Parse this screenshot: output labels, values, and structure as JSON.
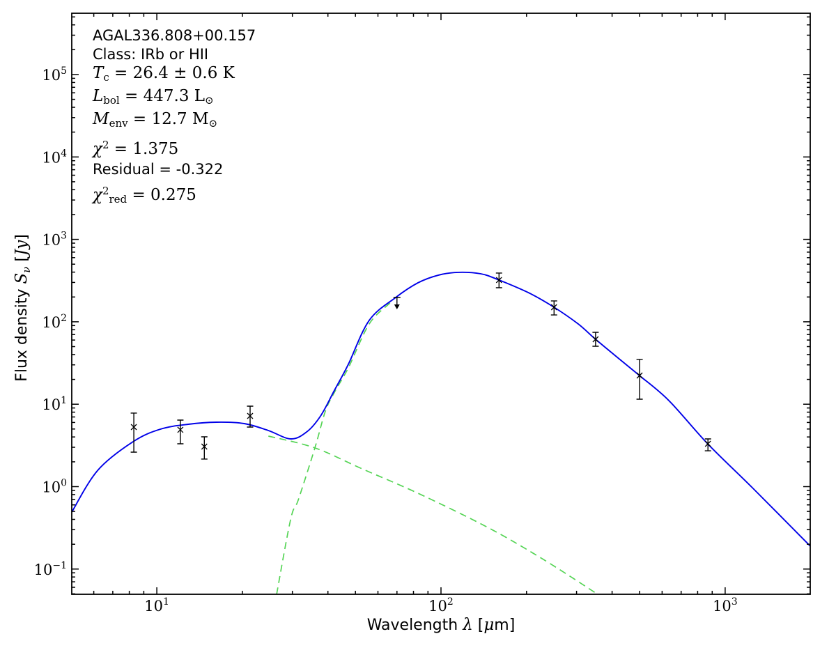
{
  "figure": {
    "background": "#ffffff"
  },
  "annotation": {
    "source_name": "AGAL336.808+00.157",
    "class_line": "Class: IRb or HII",
    "residual_line": "Residual = -0.322",
    "math_lines": {
      "tc": [
        {
          "t": "T",
          "c": "mi"
        },
        {
          "t": "c",
          "c": "sub"
        },
        {
          "t": " = 26.4 ± 0.6 K",
          "c": "mr"
        }
      ],
      "lbol": [
        {
          "t": "L",
          "c": "mi"
        },
        {
          "t": "bol",
          "c": "sub"
        },
        {
          "t": " = 447.3 L",
          "c": "mr"
        },
        {
          "t": "⊙",
          "c": "sub"
        }
      ],
      "menv": [
        {
          "t": "M",
          "c": "mi"
        },
        {
          "t": "env",
          "c": "sub"
        },
        {
          "t": " = 12.7 M",
          "c": "mr"
        },
        {
          "t": "⊙",
          "c": "sub"
        }
      ],
      "chi2": [
        {
          "t": "χ",
          "c": "mi"
        },
        {
          "t": "2",
          "c": "sup"
        },
        {
          "t": " = 1.375",
          "c": "mr"
        }
      ],
      "chi2red": [
        {
          "t": "χ",
          "c": "mi"
        },
        {
          "t": "2",
          "c": "sup"
        },
        {
          "t": "red",
          "c": "sub"
        },
        {
          "t": " = 0.275",
          "c": "mr"
        }
      ]
    }
  },
  "chart_data": {
    "type": "line",
    "title": "",
    "xlabel": "Wavelength λ [μm]",
    "ylabel": "Flux density Sν [Jy]",
    "xlabel_parts": [
      {
        "t": "Wavelength ",
        "c": "sans"
      },
      {
        "t": "λ",
        "c": "it"
      },
      {
        "t": " [",
        "c": "sans"
      },
      {
        "t": "μ",
        "c": "it"
      },
      {
        "t": "m]",
        "c": "sans"
      }
    ],
    "ylabel_parts": [
      {
        "t": "Flux density ",
        "c": "sans"
      },
      {
        "t": "S",
        "c": "it"
      },
      {
        "t": "ν",
        "c": "subit"
      },
      {
        "t": " [",
        "c": "sans"
      },
      {
        "t": "Jy",
        "c": "it"
      },
      {
        "t": "]",
        "c": "sans"
      }
    ],
    "grid": false,
    "legend": false,
    "x_axis": {
      "scale": "log",
      "min": 5.02,
      "max": 1992,
      "unit": "μm",
      "label_exponents": [
        1,
        2,
        3
      ]
    },
    "y_axis": {
      "scale": "log",
      "min": 0.0494,
      "max": 554000,
      "unit": "Jy",
      "label_exponents": [
        -1,
        0,
        1,
        2,
        3,
        4,
        5
      ]
    },
    "series": [
      {
        "name": "cold-greybody-component",
        "color": "#55d455",
        "style": "dashed",
        "points": [
          [
            26.4,
            0.0494
          ],
          [
            29.6,
            0.404
          ],
          [
            31.5,
            0.698
          ],
          [
            36.0,
            2.95
          ],
          [
            39.2,
            8.26
          ],
          [
            42.2,
            14.0
          ],
          [
            47.2,
            27.6
          ],
          [
            55.9,
            94.2
          ],
          [
            66.2,
            169
          ]
        ]
      },
      {
        "name": "hot-component",
        "color": "#55d455",
        "style": "dashed",
        "points": [
          [
            24.7,
            4.1
          ],
          [
            36.0,
            2.95
          ],
          [
            52.8,
            1.64
          ],
          [
            83.0,
            0.83
          ],
          [
            146,
            0.32
          ],
          [
            229,
            0.131
          ],
          [
            356,
            0.0494
          ]
        ]
      },
      {
        "name": "total-model",
        "color": "#0000e8",
        "style": "solid",
        "points": [
          [
            5.02,
            0.49
          ],
          [
            6.2,
            1.58
          ],
          [
            8.25,
            3.51
          ],
          [
            10.3,
            4.98
          ],
          [
            12.9,
            5.71
          ],
          [
            16.2,
            6.05
          ],
          [
            20.3,
            5.82
          ],
          [
            24.7,
            4.79
          ],
          [
            29.6,
            3.79
          ],
          [
            33.7,
            4.61
          ],
          [
            37.7,
            7.2
          ],
          [
            42.2,
            14.8
          ],
          [
            47.2,
            30.5
          ],
          [
            55.9,
            104
          ],
          [
            69.3,
            197
          ],
          [
            83,
            297
          ],
          [
            98,
            368
          ],
          [
            115,
            398
          ],
          [
            138,
            382
          ],
          [
            160,
            321
          ],
          [
            205,
            222
          ],
          [
            250,
            150
          ],
          [
            304,
            94
          ],
          [
            350,
            61.3
          ],
          [
            426,
            34.9
          ],
          [
            499,
            22.3
          ],
          [
            633,
            11.1
          ],
          [
            868,
            3.31
          ],
          [
            1246,
            0.97
          ],
          [
            1992,
            0.19
          ]
        ]
      }
    ],
    "data_points": {
      "color": "#000000",
      "marker": "x",
      "values": [
        {
          "wl": 8.3,
          "flux": 5.28,
          "lo": 2.62,
          "hi": 7.8
        },
        {
          "wl": 12.1,
          "flux": 4.89,
          "lo": 3.31,
          "hi": 6.41
        },
        {
          "wl": 14.7,
          "flux": 3.06,
          "lo": 2.16,
          "hi": 4.02
        },
        {
          "wl": 21.3,
          "flux": 7.21,
          "lo": 5.28,
          "hi": 9.47
        },
        {
          "wl": 70,
          "flux": 197,
          "limit": "upper"
        },
        {
          "wl": 160,
          "flux": 321,
          "lo": 259,
          "hi": 390
        },
        {
          "wl": 250,
          "flux": 150,
          "lo": 121,
          "hi": 179
        },
        {
          "wl": 350,
          "flux": 61.3,
          "lo": 50.5,
          "hi": 74.5
        },
        {
          "wl": 500,
          "flux": 22.3,
          "lo": 11.5,
          "hi": 34.9
        },
        {
          "wl": 870,
          "flux": 3.31,
          "lo": 2.72,
          "hi": 3.79
        }
      ]
    }
  }
}
